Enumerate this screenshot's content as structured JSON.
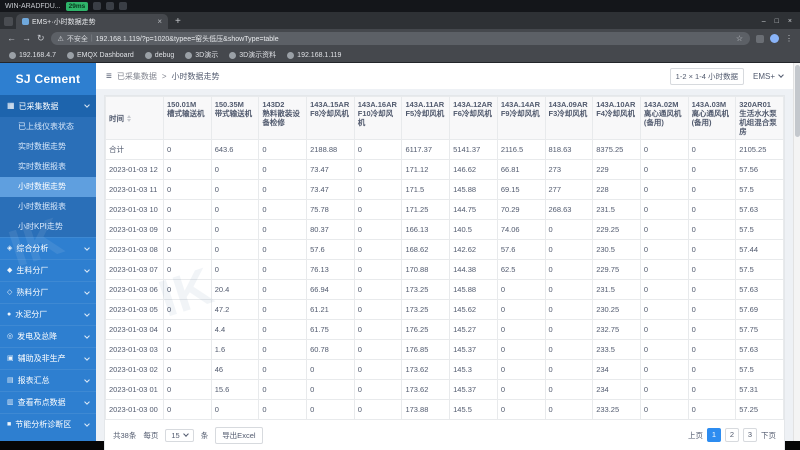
{
  "vm": {
    "title": "WIN-ARADFDU...",
    "ping": "29ms"
  },
  "browser": {
    "tab_title": "EMS+·小时数据走势",
    "new_tab": "+",
    "security": "不安全",
    "url": "192.168.1.119/?p=1020&typee=窑头低压&showType=table",
    "bookmarks": [
      "192.168.4.7",
      "EMQX Dashboard",
      "debug",
      "3D演示",
      "3D演示资料",
      "192.168.1.119"
    ]
  },
  "icons": {
    "back": "←",
    "forward": "→",
    "reload": "↻",
    "warn": "⚠",
    "star": "☆",
    "menu": "⋮",
    "min": "–",
    "max": "□",
    "close": "×",
    "tab_close": "×",
    "collapse": "≡",
    "sep": "|",
    "group": "▦"
  },
  "sidebar": {
    "logo": "SJ Cement",
    "group_label": "已采集数据",
    "items": [
      {
        "label": "已上线仪表状态",
        "active": false
      },
      {
        "label": "实时数据走势",
        "active": false
      },
      {
        "label": "实时数据报表",
        "active": false
      },
      {
        "label": "小时数据走势",
        "active": true
      },
      {
        "label": "小时数据报表",
        "active": false
      },
      {
        "label": "小时KPI走势",
        "active": false
      }
    ],
    "sections": [
      {
        "icon": "◈",
        "label": "综合分析"
      },
      {
        "icon": "◆",
        "label": "生料分厂"
      },
      {
        "icon": "◇",
        "label": "熟料分厂"
      },
      {
        "icon": "●",
        "label": "水泥分厂"
      },
      {
        "icon": "◎",
        "label": "发电及总降"
      },
      {
        "icon": "▣",
        "label": "辅助及非生产"
      },
      {
        "icon": "▤",
        "label": "报表汇总"
      },
      {
        "icon": "▥",
        "label": "查看布点数据"
      },
      {
        "icon": "■",
        "label": "节能分析诊断区"
      }
    ]
  },
  "crumb": {
    "parent": "已采集数据",
    "sep": ">",
    "current": "小时数据走势",
    "range": "1-2 × 1-4 小时数据",
    "app": "EMS+"
  },
  "table": {
    "time_col": "时间",
    "columns": [
      {
        "code": "150.01M",
        "name": "槽式输送机"
      },
      {
        "code": "150.35M",
        "name": "带式输送机"
      },
      {
        "code": "143D2",
        "name": "熟料散装设备检修"
      },
      {
        "code": "143A.15AR",
        "name": "F8冷却风机"
      },
      {
        "code": "143A.16AR",
        "name": "F10冷却风机"
      },
      {
        "code": "143A.11AR",
        "name": "F5冷却风机"
      },
      {
        "code": "143A.12AR",
        "name": "F6冷却风机"
      },
      {
        "code": "143A.14AR",
        "name": "F9冷却风机"
      },
      {
        "code": "143A.09AR",
        "name": "F3冷却风机"
      },
      {
        "code": "143A.10AR",
        "name": "F4冷却风机"
      },
      {
        "code": "143A.02M",
        "name": "离心通风机(备用)"
      },
      {
        "code": "143A.03M",
        "name": "离心通风机(备用)"
      },
      {
        "code": "320AR01",
        "name": "生活水水泵机组混合泵房"
      }
    ],
    "rows": [
      {
        "time": "合计",
        "values": [
          "0",
          "643.6",
          "0",
          "2188.88",
          "0",
          "6117.37",
          "5141.37",
          "2116.5",
          "818.63",
          "8375.25",
          "0",
          "0",
          "2105.25"
        ]
      },
      {
        "time": "2023-01-03 12",
        "values": [
          "0",
          "0",
          "0",
          "73.47",
          "0",
          "171.12",
          "146.62",
          "66.81",
          "273",
          "229",
          "0",
          "0",
          "57.56"
        ]
      },
      {
        "time": "2023-01-03 11",
        "values": [
          "0",
          "0",
          "0",
          "73.47",
          "0",
          "171.5",
          "145.88",
          "69.15",
          "277",
          "228",
          "0",
          "0",
          "57.5"
        ]
      },
      {
        "time": "2023-01-03 10",
        "values": [
          "0",
          "0",
          "0",
          "75.78",
          "0",
          "171.25",
          "144.75",
          "70.29",
          "268.63",
          "231.5",
          "0",
          "0",
          "57.63"
        ]
      },
      {
        "time": "2023-01-03 09",
        "values": [
          "0",
          "0",
          "0",
          "80.37",
          "0",
          "166.13",
          "140.5",
          "74.06",
          "0",
          "229.25",
          "0",
          "0",
          "57.5"
        ]
      },
      {
        "time": "2023-01-03 08",
        "values": [
          "0",
          "0",
          "0",
          "57.6",
          "0",
          "168.62",
          "142.62",
          "57.6",
          "0",
          "230.5",
          "0",
          "0",
          "57.44"
        ]
      },
      {
        "time": "2023-01-03 07",
        "values": [
          "0",
          "0",
          "0",
          "76.13",
          "0",
          "170.88",
          "144.38",
          "62.5",
          "0",
          "229.75",
          "0",
          "0",
          "57.5"
        ]
      },
      {
        "time": "2023-01-03 06",
        "values": [
          "0",
          "20.4",
          "0",
          "66.94",
          "0",
          "173.25",
          "145.88",
          "0",
          "0",
          "231.5",
          "0",
          "0",
          "57.63"
        ]
      },
      {
        "time": "2023-01-03 05",
        "values": [
          "0",
          "47.2",
          "0",
          "61.21",
          "0",
          "173.25",
          "145.62",
          "0",
          "0",
          "230.25",
          "0",
          "0",
          "57.69"
        ]
      },
      {
        "time": "2023-01-03 04",
        "values": [
          "0",
          "4.4",
          "0",
          "61.75",
          "0",
          "176.25",
          "145.27",
          "0",
          "0",
          "232.75",
          "0",
          "0",
          "57.75"
        ]
      },
      {
        "time": "2023-01-03 03",
        "values": [
          "0",
          "1.6",
          "0",
          "60.78",
          "0",
          "176.85",
          "145.37",
          "0",
          "0",
          "233.5",
          "0",
          "0",
          "57.63"
        ]
      },
      {
        "time": "2023-01-03 02",
        "values": [
          "0",
          "46",
          "0",
          "0",
          "0",
          "173.62",
          "145.3",
          "0",
          "0",
          "234",
          "0",
          "0",
          "57.5"
        ]
      },
      {
        "time": "2023-01-03 01",
        "values": [
          "0",
          "15.6",
          "0",
          "0",
          "0",
          "173.62",
          "145.37",
          "0",
          "0",
          "234",
          "0",
          "0",
          "57.31"
        ]
      },
      {
        "time": "2023-01-03 00",
        "values": [
          "0",
          "0",
          "0",
          "0",
          "0",
          "173.88",
          "145.5",
          "0",
          "0",
          "233.25",
          "0",
          "0",
          "57.25"
        ]
      }
    ]
  },
  "footer": {
    "total": "共38条",
    "per_page_prefix": "每页",
    "page_size": "15",
    "per_page_suffix": "条",
    "export": "导出Excel",
    "prev": "上页",
    "pages": [
      "1",
      "2",
      "3"
    ],
    "active": "1",
    "next": "下页"
  },
  "watermark": "IK"
}
